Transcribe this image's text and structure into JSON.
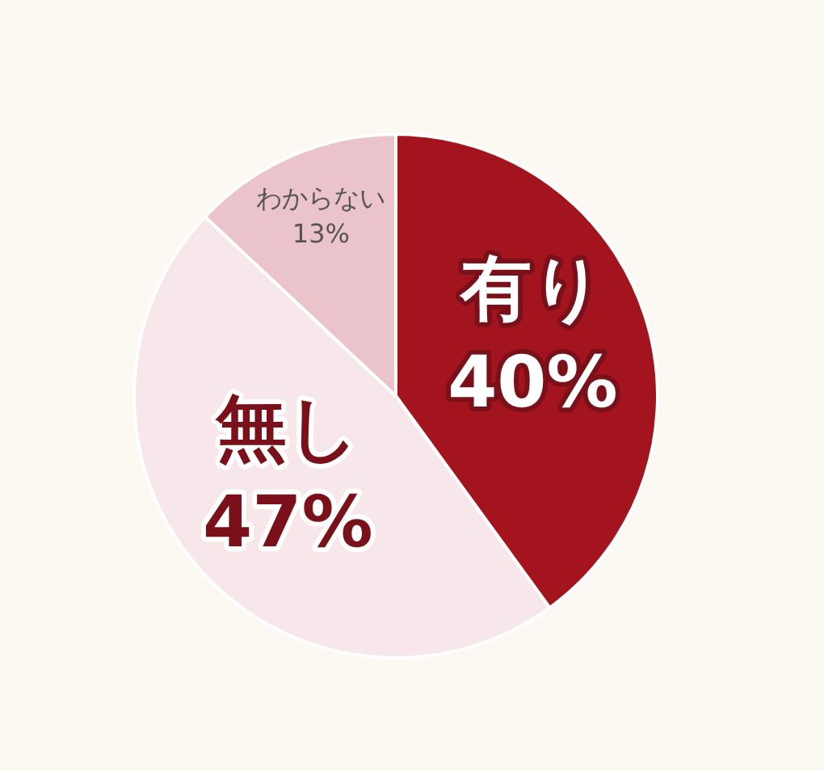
{
  "chart_data": {
    "type": "pie",
    "categories": [
      "有り",
      "無し",
      "わからない"
    ],
    "values": [
      40,
      47,
      13
    ],
    "value_labels": [
      "40%",
      "47%",
      "13%"
    ],
    "colors": [
      "#a3141f",
      "#f7e6ea",
      "#ebc3cb"
    ]
  }
}
